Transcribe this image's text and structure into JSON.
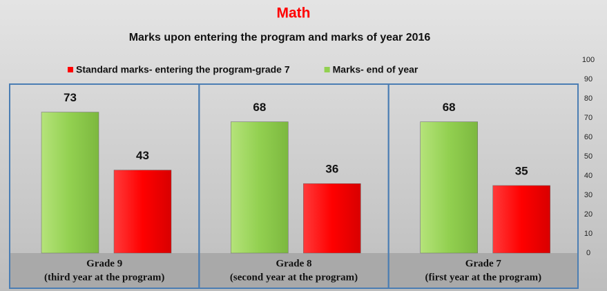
{
  "chart_data": {
    "type": "bar",
    "title": "Math",
    "subtitle": "Marks upon entering the program and marks of year 2016",
    "categories": [
      "Grade 9",
      "Grade 8",
      "Grade 7"
    ],
    "category_notes": [
      "(third year at the program)",
      "(second year at the program)",
      "(first year at the program)"
    ],
    "series": [
      {
        "name": "Standard marks- entering the program-grade 7",
        "color": "#ff0000",
        "values": [
          43,
          36,
          35
        ]
      },
      {
        "name": "Marks- end of year",
        "color": "#92d050",
        "values": [
          73,
          68,
          68
        ]
      }
    ],
    "ylim": [
      0,
      100
    ],
    "yticks": [
      0,
      10,
      20,
      30,
      40,
      50,
      60,
      70,
      80,
      90,
      100
    ],
    "legend": "top",
    "grid": false
  }
}
